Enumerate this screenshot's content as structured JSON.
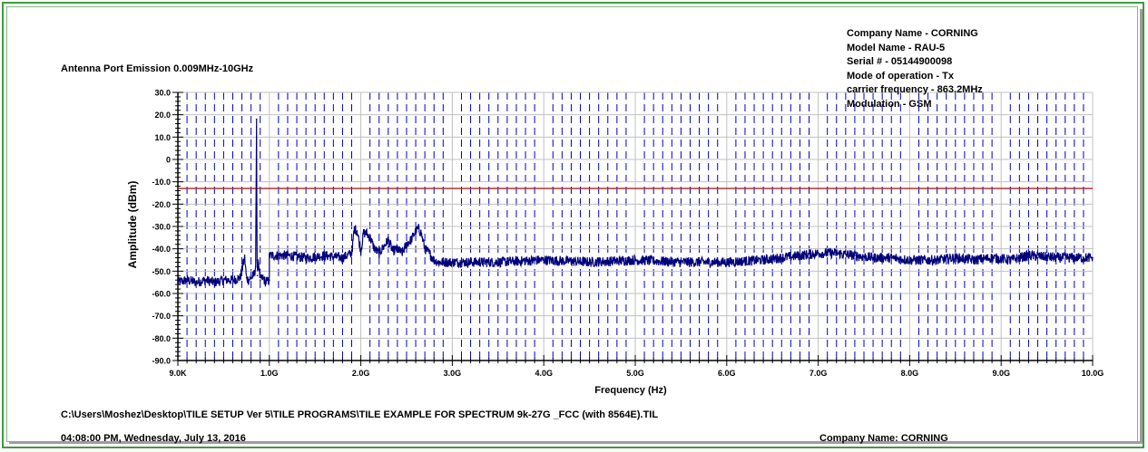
{
  "chart_data": {
    "type": "line",
    "title": "Antenna Port Emission 0.009MHz-10GHz",
    "xlabel": "Frequency (Hz)",
    "ylabel": "Amplitude (dBm)",
    "xlim": [
      0,
      10
    ],
    "ylim": [
      -90,
      30
    ],
    "x_unit_note": "GHz",
    "xticks": [
      0,
      1,
      2,
      3,
      4,
      5,
      6,
      7,
      8,
      9,
      10
    ],
    "xtick_labels": [
      "9.0K",
      "1.0G",
      "2.0G",
      "3.0G",
      "4.0G",
      "5.0G",
      "6.0G",
      "7.0G",
      "8.0G",
      "9.0G",
      "10.0G"
    ],
    "yticks": [
      30,
      20,
      10,
      0,
      -10,
      -20,
      -30,
      -40,
      -50,
      -60,
      -70,
      -80,
      -90
    ],
    "ytick_labels": [
      "30.0",
      "20.0",
      "10.0",
      "0",
      "-10.0",
      "-20.0",
      "-30.0",
      "-40.0",
      "-50.0",
      "-60.0",
      "-70.0",
      "-80.0",
      "-90.0"
    ],
    "grid": true,
    "limit_line": {
      "y": -13,
      "color": "#b22222"
    },
    "series": [
      {
        "color": "#00007a",
        "x": [
          0.0,
          0.1,
          0.2,
          0.3,
          0.4,
          0.5,
          0.6,
          0.68,
          0.73,
          0.75,
          0.77,
          0.8,
          0.83,
          0.85,
          0.86,
          0.863,
          0.866,
          0.87,
          0.88,
          0.9,
          0.93,
          0.96,
          1.0,
          1.0,
          1.2,
          1.4,
          1.6,
          1.8,
          1.9,
          1.93,
          1.96,
          2.0,
          2.03,
          2.06,
          2.1,
          2.15,
          2.2,
          2.25,
          2.3,
          2.35,
          2.4,
          2.45,
          2.5,
          2.55,
          2.6,
          2.63,
          2.66,
          2.7,
          2.75,
          2.8,
          2.85,
          3.0,
          3.5,
          4.0,
          4.5,
          5.0,
          5.5,
          6.0,
          6.4,
          6.8,
          7.0,
          7.2,
          7.4,
          7.6,
          7.8,
          8.0,
          8.3,
          8.5,
          8.7,
          8.9,
          9.1,
          9.3,
          9.6,
          9.8,
          10.0
        ],
        "y": [
          -55,
          -54,
          -55,
          -54,
          -55,
          -54,
          -54,
          -53,
          -44,
          -53,
          -54,
          -53,
          -52,
          -48,
          18,
          -20,
          -45,
          -52,
          -45,
          -54,
          -53,
          -55,
          -54,
          -43,
          -43,
          -44,
          -43,
          -44,
          -42,
          -31,
          -32,
          -41,
          -33,
          -33,
          -35,
          -40,
          -42,
          -39,
          -36,
          -41,
          -40,
          -42,
          -38,
          -36,
          -32,
          -31,
          -33,
          -40,
          -42,
          -45,
          -46,
          -46,
          -46,
          -45,
          -46,
          -45,
          -46,
          -46,
          -45,
          -43,
          -42,
          -42,
          -43,
          -44,
          -44,
          -45,
          -45,
          -44,
          -45,
          -44,
          -45,
          -43,
          -44,
          -44,
          -44
        ]
      }
    ]
  },
  "info": {
    "company": "Company Name - CORNING",
    "model": "Model Name - RAU-5",
    "serial": "Serial # - 05144900098",
    "mode": "Mode of operation - Tx",
    "carrier": "carrier frequency - 863.2MHz",
    "modulation": "Modulation - GSM"
  },
  "footer": {
    "path": "C:\\Users\\Moshez\\Desktop\\TILE SETUP Ver 5\\TILE PROGRAMS\\TILE EXAMPLE FOR SPECTRUM 9k-27G _FCC (with 8564E).TIL",
    "timestamp": "04:08:00 PM, Wednesday, July 13, 2016",
    "company": "Company Name: CORNING"
  },
  "colors": {
    "frame": "#3f9a3f",
    "trace": "#00007a",
    "limit": "#b22222",
    "grid_minor": "#0000cc",
    "grid_major": "#c0c0c0"
  }
}
